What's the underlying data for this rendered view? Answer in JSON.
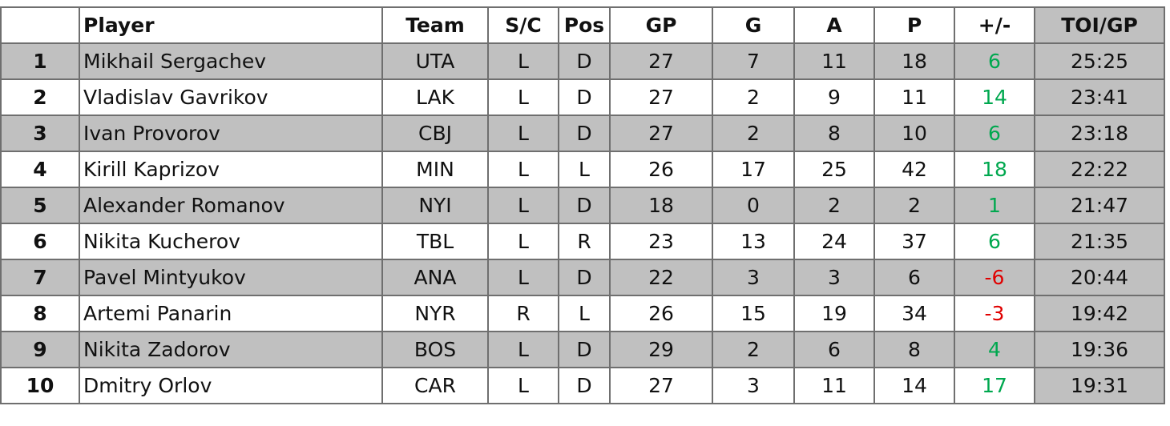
{
  "table": {
    "headers": [
      "Player",
      "Team",
      "S/C",
      "Pos",
      "GP",
      "G",
      "A",
      "P",
      "+/-",
      "TOI/GP"
    ],
    "rows": [
      [
        1,
        "Mikhail Sergachev",
        "UTA",
        "L",
        "D",
        27,
        7,
        11,
        18,
        6,
        "25:25"
      ],
      [
        2,
        "Vladislav Gavrikov",
        "LAK",
        "L",
        "D",
        27,
        2,
        9,
        11,
        14,
        "23:41"
      ],
      [
        3,
        "Ivan Provorov",
        "CBJ",
        "L",
        "D",
        27,
        2,
        8,
        10,
        6,
        "23:18"
      ],
      [
        4,
        "Kirill Kaprizov",
        "MIN",
        "L",
        "L",
        26,
        17,
        25,
        42,
        18,
        "22:22"
      ],
      [
        5,
        "Alexander Romanov",
        "NYI",
        "L",
        "D",
        18,
        0,
        2,
        2,
        1,
        "21:47"
      ],
      [
        6,
        "Nikita Kucherov",
        "TBL",
        "L",
        "R",
        23,
        13,
        24,
        37,
        6,
        "21:35"
      ],
      [
        7,
        "Pavel Mintyukov",
        "ANA",
        "L",
        "D",
        22,
        3,
        3,
        6,
        -6,
        "20:44"
      ],
      [
        8,
        "Artemi Panarin",
        "NYR",
        "R",
        "L",
        26,
        15,
        19,
        34,
        -3,
        "19:42"
      ],
      [
        9,
        "Nikita Zadorov",
        "BOS",
        "L",
        "D",
        29,
        2,
        6,
        8,
        4,
        "19:36"
      ],
      [
        10,
        "Dmitry Orlov",
        "CAR",
        "L",
        "D",
        27,
        3,
        11,
        14,
        17,
        "19:31"
      ]
    ]
  }
}
